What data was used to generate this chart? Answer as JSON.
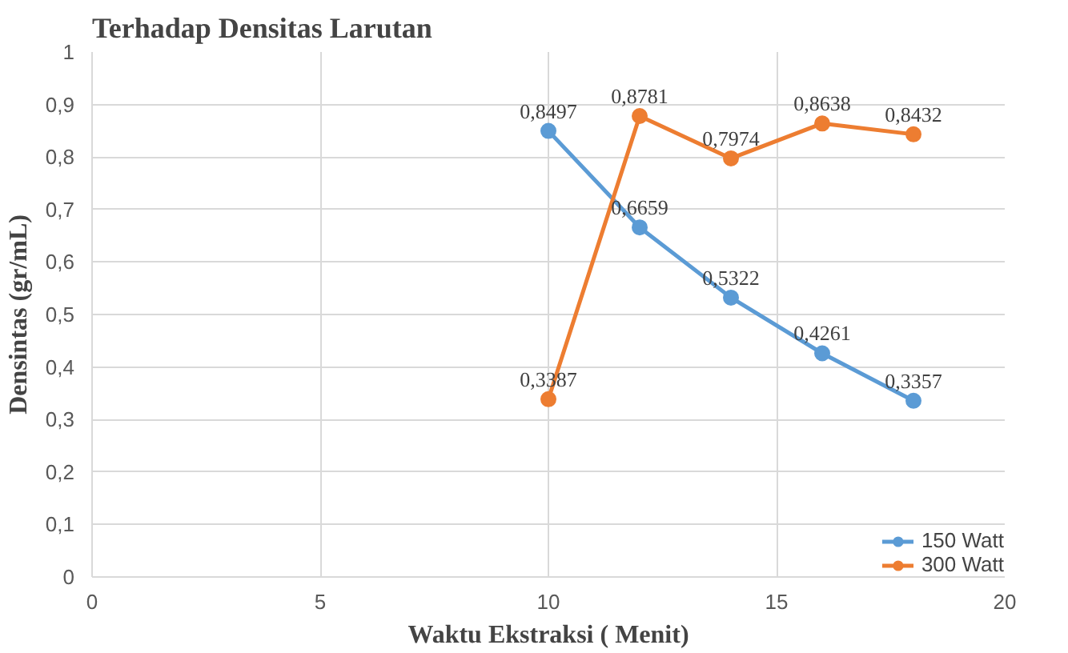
{
  "chart_data": {
    "type": "line",
    "title": "Terhadap Densitas Larutan",
    "xlabel": "Waktu Ekstraksi ( Menit)",
    "ylabel": "Densintas (gr/mL)",
    "x": [
      10,
      12,
      14,
      16,
      18
    ],
    "series": [
      {
        "name": "150 Watt",
        "color": "#5b9bd5",
        "values": [
          0.8497,
          0.6659,
          0.5322,
          0.4261,
          0.3357
        ],
        "value_labels": [
          "0,8497",
          "0,6659",
          "0,5322",
          "0,4261",
          "0,3357"
        ]
      },
      {
        "name": "300 Watt",
        "color": "#ed7d31",
        "values": [
          0.3387,
          0.8781,
          0.7974,
          0.8638,
          0.8432
        ],
        "value_labels": [
          "0,3387",
          "0,8781",
          "0,7974",
          "0,8638",
          "0,8432"
        ]
      }
    ],
    "xlim": [
      0,
      20
    ],
    "xticks": [
      0,
      5,
      10,
      15,
      20
    ],
    "ylim": [
      0,
      1
    ],
    "yticks": [
      {
        "value": 0,
        "label": "0"
      },
      {
        "value": 0.1,
        "label": "0,1"
      },
      {
        "value": 0.2,
        "label": "0,2"
      },
      {
        "value": 0.3,
        "label": "0,3"
      },
      {
        "value": 0.4,
        "label": "0,4"
      },
      {
        "value": 0.5,
        "label": "0,5"
      },
      {
        "value": 0.6,
        "label": "0,6"
      },
      {
        "value": 0.7,
        "label": "0,7"
      },
      {
        "value": 0.8,
        "label": "0,8"
      },
      {
        "value": 0.9,
        "label": "0,9"
      },
      {
        "value": 1,
        "label": "1"
      }
    ],
    "grid": true,
    "legend": "bottom right",
    "marker": "circle",
    "line_style": "solid"
  }
}
